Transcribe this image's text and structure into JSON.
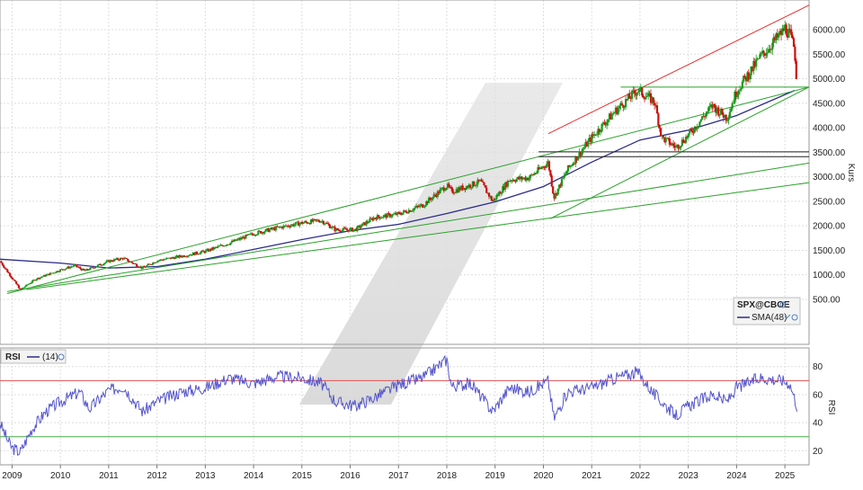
{
  "chart_data": [
    {
      "type": "candlestick",
      "title": "",
      "ylabel": "Kurs",
      "ylim": [
        280,
        6550
      ],
      "y_scale": "linear",
      "y_ticks": [
        "500.00",
        "1000.00",
        "1500.00",
        "2000.00",
        "2500.00",
        "3000.00",
        "3500.00",
        "4000.00",
        "4500.00",
        "5000.00",
        "5500.00",
        "6000.00"
      ],
      "x_ticks": [
        "2009",
        "2010",
        "2011",
        "2012",
        "2013",
        "2014",
        "2015",
        "2016",
        "2017",
        "2018",
        "2019",
        "2020",
        "2021",
        "2022",
        "2023",
        "2024",
        "2025"
      ],
      "grid": true,
      "legend_position": "bottom-right",
      "legend": {
        "symbol": "SPX@CBOE",
        "sma_label": "SMA(48)"
      },
      "colors": {
        "up": "#1a9a1a",
        "down": "#cc1111",
        "sma": "#2b2b8c",
        "trend_up": "#2aa12a",
        "trend_red": "#e53030",
        "horizontal": "#222222"
      },
      "series": [
        {
          "kind": "close_anchors",
          "x": [
            2008.75,
            2009.17,
            2009.5,
            2010.0,
            2010.3,
            2010.5,
            2011.0,
            2011.3,
            2011.7,
            2012.0,
            2012.5,
            2013.0,
            2013.5,
            2014.0,
            2014.5,
            2015.0,
            2015.4,
            2015.7,
            2016.1,
            2016.5,
            2017.0,
            2017.5,
            2018.0,
            2018.1,
            2018.7,
            2018.95,
            2019.3,
            2019.7,
            2020.1,
            2020.22,
            2020.5,
            2021.0,
            2021.5,
            2021.95,
            2022.3,
            2022.45,
            2022.75,
            2023.0,
            2023.5,
            2023.8,
            2024.0,
            2024.5,
            2024.95,
            2025.0,
            2025.1,
            2025.2,
            2025.25
          ],
          "y": [
            1280,
            700,
            920,
            1100,
            1190,
            1080,
            1280,
            1340,
            1140,
            1290,
            1380,
            1480,
            1650,
            1840,
            1960,
            2060,
            2110,
            1920,
            1920,
            2170,
            2240,
            2420,
            2820,
            2700,
            2900,
            2500,
            2940,
            2980,
            3290,
            2580,
            3150,
            3800,
            4350,
            4770,
            4530,
            3800,
            3600,
            3850,
            4450,
            4200,
            4750,
            5450,
            5950,
            6040,
            5900,
            5600,
            4850
          ]
        },
        {
          "kind": "sma",
          "name": "SMA(48)",
          "x": [
            2008.75,
            2010,
            2011,
            2012,
            2013,
            2014,
            2015,
            2016,
            2017,
            2018,
            2019,
            2020,
            2021,
            2022,
            2023,
            2024,
            2025.2
          ],
          "y": [
            1320,
            1240,
            1140,
            1170,
            1320,
            1520,
            1720,
            1900,
            2030,
            2250,
            2490,
            2800,
            3300,
            3750,
            3950,
            4250,
            4760
          ]
        },
        {
          "kind": "trendline",
          "x": [
            2008.9,
            2025.5
          ],
          "y": [
            620,
            4830
          ]
        },
        {
          "kind": "trendline",
          "x": [
            2008.9,
            2025.5
          ],
          "y": [
            660,
            3280
          ]
        },
        {
          "kind": "trendline",
          "x": [
            2009.3,
            2025.5
          ],
          "y": [
            700,
            2880
          ]
        },
        {
          "kind": "trendline",
          "x": [
            2020.15,
            2025.5
          ],
          "y": [
            2150,
            4830
          ]
        },
        {
          "kind": "channel_line",
          "x": [
            2020.1,
            2025.5
          ],
          "y": [
            3880,
            6500
          ]
        },
        {
          "kind": "horizontal",
          "x": [
            2021.6,
            2025.5
          ],
          "y": [
            4830,
            4830
          ]
        },
        {
          "kind": "horizontal",
          "x": [
            2019.9,
            2025.5
          ],
          "y": [
            3510,
            3510
          ]
        },
        {
          "kind": "horizontal",
          "x": [
            2019.9,
            2025.5
          ],
          "y": [
            3410,
            3410
          ]
        }
      ]
    },
    {
      "type": "line",
      "title": "RSI",
      "ylabel": "RSI",
      "ylim": [
        10,
        92
      ],
      "y_ticks": [
        "20",
        "40",
        "60",
        "80"
      ],
      "legend": {
        "name": "RSI",
        "period": "(14)"
      },
      "colors": {
        "line": "#5555cc",
        "upper": "#e05050",
        "lower": "#44aa44"
      },
      "levels": [
        70,
        30
      ],
      "series": [
        {
          "name": "RSI",
          "x": [
            2008.75,
            2008.9,
            2009.0,
            2009.17,
            2009.4,
            2009.7,
            2010.0,
            2010.4,
            2010.6,
            2011.0,
            2011.3,
            2011.7,
            2012.0,
            2012.5,
            2013.0,
            2013.5,
            2014.0,
            2014.5,
            2015.0,
            2015.4,
            2015.7,
            2016.1,
            2016.5,
            2017.0,
            2017.5,
            2018.0,
            2018.1,
            2018.5,
            2018.95,
            2019.3,
            2019.7,
            2020.1,
            2020.22,
            2020.5,
            2021.0,
            2021.5,
            2021.95,
            2022.3,
            2022.75,
            2023.0,
            2023.5,
            2023.8,
            2024.0,
            2024.5,
            2024.95,
            2025.1,
            2025.25
          ],
          "y": [
            40,
            28,
            22,
            19,
            35,
            48,
            55,
            62,
            50,
            63,
            66,
            48,
            55,
            62,
            65,
            72,
            68,
            73,
            72,
            68,
            55,
            52,
            58,
            67,
            72,
            85,
            66,
            68,
            48,
            65,
            62,
            70,
            43,
            62,
            65,
            72,
            76,
            60,
            45,
            52,
            60,
            55,
            65,
            72,
            70,
            68,
            52
          ]
        }
      ]
    }
  ]
}
